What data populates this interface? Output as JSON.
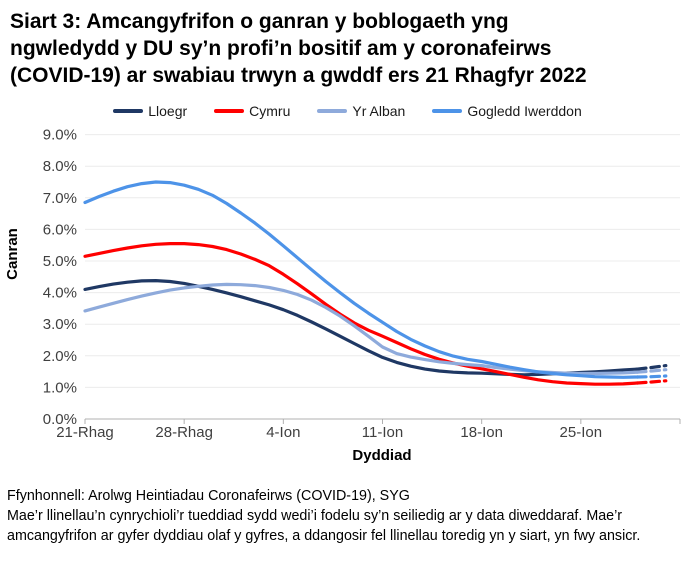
{
  "header": {
    "title_lines": [
      "Siart 3: Amcangyfrifon o ganran y boblogaeth yng",
      "ngwledydd y DU sy’n profi’n bositif am y coronafeirws",
      "(COVID-19) ar swabiau trwyn a gwddf ers 21 Rhagfyr 2022"
    ]
  },
  "footer": {
    "source": "Ffynhonnell: Arolwg Heintiadau Coronafeirws (COVID-19), SYG",
    "note": "Mae’r llinellau’n cynrychioli’r tueddiad sydd wedi’i fodelu sy’n seiliedig ar y data diweddaraf. Mae’r amcangyfrifon ar gyfer dyddiau olaf y gyfres, a ddangosir fel llinellau toredig yn y siart, yn fwy ansicr."
  },
  "chart_data": {
    "type": "line",
    "title": "Siart 3: Amcangyfrifon o ganran y boblogaeth yng ngwledydd y DU sy’n profi’n bositif am y coronafeirws (COVID-19) ar swabiau trwyn a gwddf ers 21 Rhagfyr 2022",
    "xlabel": "Dyddiad",
    "ylabel": "Canran",
    "ylim": [
      0,
      9
    ],
    "y_tick_labels": [
      "0.0%",
      "1.0%",
      "2.0%",
      "3.0%",
      "4.0%",
      "5.0%",
      "6.0%",
      "7.0%",
      "8.0%",
      "9.0%"
    ],
    "x_axis_days": 42,
    "x_ticks": [
      {
        "day": 0,
        "label": "21-Rhag"
      },
      {
        "day": 7,
        "label": "28-Rhag"
      },
      {
        "day": 14,
        "label": "4-Ion"
      },
      {
        "day": 21,
        "label": "11-Ion"
      },
      {
        "day": 28,
        "label": "18-Ion"
      },
      {
        "day": 35,
        "label": "25-Ion"
      }
    ],
    "grid": "horizontal",
    "legend_position": "top",
    "dashed_from_day": 39,
    "colors": {
      "gridline": "#ececec",
      "axis_line": "#b0b0b0",
      "tick_text": "#3f3f3f"
    },
    "series": [
      {
        "name": "Lloegr",
        "color": "#1f3864",
        "values": [
          4.1,
          4.19,
          4.27,
          4.33,
          4.37,
          4.38,
          4.35,
          4.29,
          4.2,
          4.1,
          3.99,
          3.87,
          3.74,
          3.61,
          3.46,
          3.28,
          3.07,
          2.85,
          2.62,
          2.39,
          2.16,
          1.95,
          1.79,
          1.67,
          1.58,
          1.52,
          1.48,
          1.46,
          1.45,
          1.43,
          1.41,
          1.4,
          1.41,
          1.43,
          1.45,
          1.47,
          1.49,
          1.52,
          1.55,
          1.58,
          1.63,
          1.69
        ]
      },
      {
        "name": "Cymru",
        "color": "#ff0000",
        "values": [
          5.15,
          5.24,
          5.33,
          5.41,
          5.48,
          5.53,
          5.55,
          5.55,
          5.52,
          5.46,
          5.36,
          5.22,
          5.05,
          4.85,
          4.58,
          4.28,
          3.96,
          3.63,
          3.32,
          3.04,
          2.81,
          2.62,
          2.42,
          2.22,
          2.04,
          1.89,
          1.77,
          1.67,
          1.59,
          1.5,
          1.41,
          1.32,
          1.24,
          1.18,
          1.14,
          1.12,
          1.1,
          1.1,
          1.11,
          1.14,
          1.17,
          1.21
        ]
      },
      {
        "name": "Yr Alban",
        "color": "#8eaadb",
        "values": [
          3.42,
          3.54,
          3.66,
          3.78,
          3.89,
          3.99,
          4.08,
          4.15,
          4.2,
          4.24,
          4.26,
          4.25,
          4.22,
          4.16,
          4.07,
          3.94,
          3.76,
          3.53,
          3.26,
          2.95,
          2.62,
          2.28,
          2.07,
          1.96,
          1.88,
          1.81,
          1.76,
          1.72,
          1.69,
          1.63,
          1.58,
          1.53,
          1.49,
          1.47,
          1.45,
          1.44,
          1.44,
          1.45,
          1.46,
          1.48,
          1.52,
          1.56
        ]
      },
      {
        "name": "Gogledd Iwerddon",
        "color": "#4d93e8",
        "values": [
          6.85,
          7.04,
          7.21,
          7.35,
          7.45,
          7.5,
          7.48,
          7.4,
          7.27,
          7.08,
          6.82,
          6.52,
          6.2,
          5.85,
          5.48,
          5.1,
          4.72,
          4.35,
          4.0,
          3.66,
          3.35,
          3.06,
          2.77,
          2.52,
          2.31,
          2.13,
          1.99,
          1.89,
          1.82,
          1.73,
          1.64,
          1.56,
          1.49,
          1.44,
          1.4,
          1.37,
          1.34,
          1.33,
          1.32,
          1.33,
          1.34,
          1.36
        ]
      }
    ]
  }
}
